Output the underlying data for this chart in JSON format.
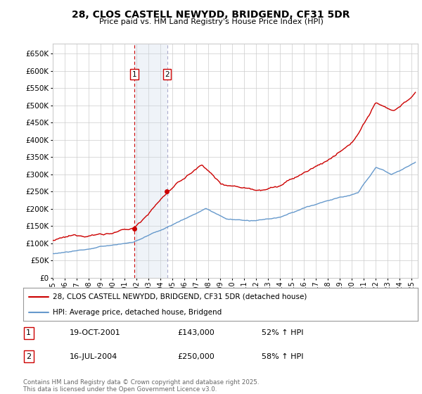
{
  "title": "28, CLOS CASTELL NEWYDD, BRIDGEND, CF31 5DR",
  "subtitle": "Price paid vs. HM Land Registry's House Price Index (HPI)",
  "legend_line1": "28, CLOS CASTELL NEWYDD, BRIDGEND, CF31 5DR (detached house)",
  "legend_line2": "HPI: Average price, detached house, Bridgend",
  "footer": "Contains HM Land Registry data © Crown copyright and database right 2025.\nThis data is licensed under the Open Government Licence v3.0.",
  "purchase1_date": "19-OCT-2001",
  "purchase1_price": 143000,
  "purchase1_label": "1",
  "purchase1_hpi": "52% ↑ HPI",
  "purchase2_date": "16-JUL-2004",
  "purchase2_price": 250000,
  "purchase2_label": "2",
  "purchase2_hpi": "58% ↑ HPI",
  "red_color": "#cc0000",
  "blue_color": "#6699cc",
  "shade_color": "#ccd9e8",
  "background_color": "#ffffff",
  "grid_color": "#cccccc",
  "ylim": [
    0,
    680000
  ],
  "yticks": [
    0,
    50000,
    100000,
    150000,
    200000,
    250000,
    300000,
    350000,
    400000,
    450000,
    500000,
    550000,
    600000,
    650000
  ],
  "p1_year_float": 2001.8,
  "p2_year_float": 2004.55,
  "p1_red_value": 143000,
  "p2_red_value": 250000
}
